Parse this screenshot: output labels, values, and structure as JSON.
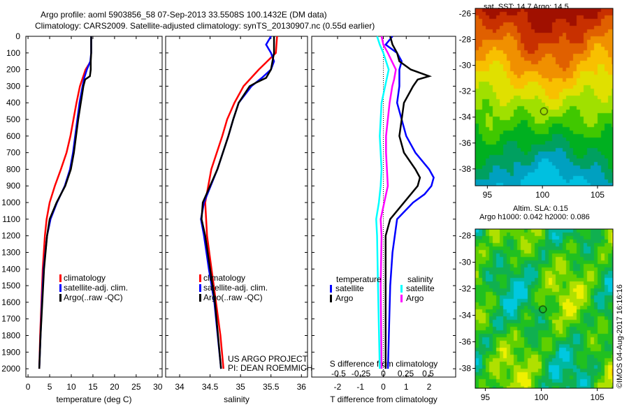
{
  "title_line1": "Argo profile: aoml 5903856_58 07-Sep-2013 33.5508S 100.1432E (DM data)",
  "title_line2": "Climatology: CARS2009. Satellite-adjusted climatology: synTS_20130907.nc (0.55d earlier)",
  "project_line1": "US ARGO PROJECT",
  "project_line2": "PI: DEAN ROEMMICH",
  "watermark": "©IMOS 04-Aug-2017 16:16:16",
  "colors": {
    "climatology": "#ff0000",
    "satellite": "#0000ff",
    "argo": "#000000",
    "sal_satellite": "#00ffff",
    "sal_argo": "#ff00ff"
  },
  "chart_data": [
    {
      "type": "line",
      "xlabel": "temperature (deg C)",
      "ylabel": "depth",
      "xlim": [
        -0.5,
        31
      ],
      "ylim": [
        2050,
        0
      ],
      "xticks": [
        0,
        5,
        10,
        15,
        20,
        25,
        30
      ],
      "yticks": [
        0,
        100,
        200,
        300,
        400,
        500,
        600,
        700,
        800,
        900,
        1000,
        1100,
        1200,
        1300,
        1400,
        1500,
        1600,
        1700,
        1800,
        1900,
        2000
      ],
      "legend": [
        "climatology",
        "satellite-adj. clim.",
        "Argo(..raw -QC)"
      ],
      "series": [
        {
          "name": "climatology",
          "color": "#ff0000",
          "depth": [
            150,
            200,
            300,
            400,
            500,
            600,
            700,
            800,
            900,
            1000,
            1100,
            1200,
            1400,
            1600,
            1800,
            2000
          ],
          "values": [
            14.5,
            13.3,
            12.0,
            11.2,
            10.5,
            9.8,
            8.9,
            7.6,
            6.2,
            5.0,
            4.3,
            3.9,
            3.4,
            3.1,
            2.8,
            2.6
          ]
        },
        {
          "name": "satellite-adj. clim.",
          "color": "#0000ff",
          "depth": [
            0,
            100,
            150,
            200,
            250,
            300,
            400,
            500,
            600,
            700,
            800,
            900,
            1000,
            1100,
            1200,
            1400,
            1600,
            1800,
            2000
          ],
          "values": [
            14.6,
            14.6,
            14.4,
            13.6,
            13.0,
            12.6,
            11.9,
            11.4,
            10.9,
            10.4,
            9.7,
            8.5,
            6.7,
            5.2,
            4.4,
            3.6,
            3.2,
            2.9,
            2.6
          ]
        },
        {
          "name": "Argo(..raw -QC)",
          "color": "#000000",
          "depth": [
            0,
            100,
            150,
            200,
            240,
            260,
            300,
            400,
            500,
            600,
            700,
            800,
            900,
            1000,
            1100,
            1200,
            1400,
            1600,
            1800,
            2000
          ],
          "values": [
            14.6,
            14.6,
            14.5,
            14.5,
            14.3,
            13.2,
            12.8,
            12.2,
            11.6,
            11.1,
            10.6,
            9.9,
            8.6,
            6.6,
            5.0,
            4.4,
            3.7,
            3.3,
            2.9,
            2.6
          ]
        }
      ]
    },
    {
      "type": "line",
      "xlabel": "salinity",
      "ylabel": "depth",
      "xlim": [
        33.77,
        36.1
      ],
      "ylim": [
        2050,
        0
      ],
      "xticks": [
        34,
        34.5,
        35,
        35.5,
        36
      ],
      "legend": [
        "climatology",
        "satellite-adj. clim.",
        "Argo(..raw -QC)"
      ],
      "series": [
        {
          "name": "climatology",
          "color": "#ff0000",
          "depth": [
            0,
            100,
            200,
            300,
            400,
            500,
            600,
            800,
            1000,
            1200,
            1500,
            1800,
            2000
          ],
          "values": [
            35.6,
            35.58,
            35.3,
            35.05,
            34.9,
            34.78,
            34.7,
            34.52,
            34.42,
            34.45,
            34.56,
            34.67,
            34.72
          ]
        },
        {
          "name": "satellite-adj. clim.",
          "color": "#0000ff",
          "depth": [
            0,
            50,
            100,
            150,
            200,
            250,
            300,
            400,
            500,
            600,
            800,
            1000,
            1100,
            1200,
            1400,
            1600,
            2000
          ],
          "values": [
            35.5,
            35.42,
            35.5,
            35.55,
            35.5,
            35.35,
            35.18,
            34.97,
            34.88,
            34.8,
            34.62,
            34.4,
            34.35,
            34.4,
            34.48,
            34.57,
            34.68
          ]
        },
        {
          "name": "Argo(..raw -QC)",
          "color": "#000000",
          "depth": [
            0,
            100,
            200,
            250,
            280,
            300,
            400,
            500,
            600,
            800,
            1000,
            1100,
            1200,
            1400,
            1600,
            2000
          ],
          "values": [
            35.55,
            35.55,
            35.5,
            35.42,
            35.25,
            35.15,
            34.97,
            34.88,
            34.8,
            34.62,
            34.38,
            34.36,
            34.42,
            34.5,
            34.58,
            34.68
          ]
        }
      ]
    },
    {
      "type": "line",
      "xlabel": "T difference from climatology",
      "x2label": "S difference from climatology",
      "ylabel": "depth",
      "xlim": [
        -3.13,
        3.16
      ],
      "ylim": [
        2050,
        0
      ],
      "xticks": [
        -2,
        -1,
        0,
        1,
        2
      ],
      "x2ticks": [
        "-0.5",
        "-0.25",
        "0",
        "0.25",
        "0.5"
      ],
      "legend_temperature_title": "temperature",
      "legend_salinity_title": "salinity",
      "legend": [
        "satellite",
        "Argo",
        "satellite",
        "Argo"
      ],
      "series": [
        {
          "name": "temperature satellite",
          "color": "#0000ff",
          "depth": [
            0,
            50,
            100,
            150,
            200,
            300,
            400,
            500,
            600,
            700,
            800,
            850,
            900,
            950,
            1000,
            1100,
            1200,
            1300,
            1500,
            2000
          ],
          "values": [
            0.4,
            0.1,
            0.6,
            0.8,
            0.7,
            0.7,
            0.6,
            0.8,
            1.0,
            1.4,
            2.0,
            2.2,
            2.1,
            1.8,
            1.3,
            0.6,
            0.5,
            0.4,
            0.3,
            0.2
          ]
        },
        {
          "name": "temperature Argo",
          "color": "#000000",
          "depth": [
            0,
            50,
            100,
            150,
            200,
            240,
            260,
            300,
            400,
            500,
            600,
            700,
            800,
            850,
            900,
            1000,
            1100,
            1200,
            1500,
            2000
          ],
          "values": [
            0.3,
            0.4,
            0.6,
            0.7,
            1.2,
            2.0,
            1.5,
            1.3,
            0.9,
            0.8,
            0.7,
            0.9,
            1.4,
            1.6,
            1.5,
            0.9,
            0.3,
            0.1,
            0.1,
            0.1
          ]
        },
        {
          "name": "salinity satellite",
          "color": "#00ffff",
          "depth": [
            0,
            50,
            100,
            200,
            300,
            400,
            500,
            600,
            700,
            800,
            900,
            1000,
            1100,
            1200,
            1500,
            2000
          ],
          "values": [
            -0.07,
            -0.04,
            0.0,
            0.06,
            0.02,
            -0.02,
            -0.03,
            -0.04,
            -0.03,
            -0.02,
            -0.03,
            -0.05,
            -0.08,
            -0.07,
            -0.06,
            -0.04
          ]
        },
        {
          "name": "salinity Argo",
          "color": "#ff00ff",
          "depth": [
            0,
            50,
            100,
            200,
            260,
            300,
            400,
            500,
            600,
            700,
            800,
            900,
            1000,
            1100,
            1200,
            1500,
            2000
          ],
          "values": [
            -0.02,
            0.0,
            0.05,
            0.14,
            0.12,
            0.1,
            0.07,
            0.05,
            0.03,
            0.03,
            0.04,
            0.05,
            0.01,
            -0.03,
            -0.02,
            -0.03,
            -0.02
          ]
        }
      ]
    },
    {
      "type": "heatmap",
      "title": "sat. SST: 14.7 Argo: 14.5",
      "xticks": [
        95,
        100,
        105
      ],
      "yticks": [
        -26,
        -28,
        -30,
        -32,
        -34,
        -36,
        -38
      ],
      "xlim": [
        93.9,
        106.4
      ],
      "ylim": [
        -25.6,
        -39.3
      ],
      "marker": [
        100.14,
        -33.55
      ]
    },
    {
      "type": "heatmap",
      "title": "Altim. SLA: 0.15",
      "subtitle": "Argo h1000: 0.042 h2000: 0.086",
      "xticks": [
        95,
        100,
        105
      ],
      "yticks": [
        -28,
        -30,
        -32,
        -34,
        -36,
        -38
      ],
      "xlim": [
        94.1,
        106.4
      ],
      "ylim": [
        -27.5,
        -39.5
      ],
      "marker": [
        100.14,
        -33.55
      ]
    }
  ]
}
